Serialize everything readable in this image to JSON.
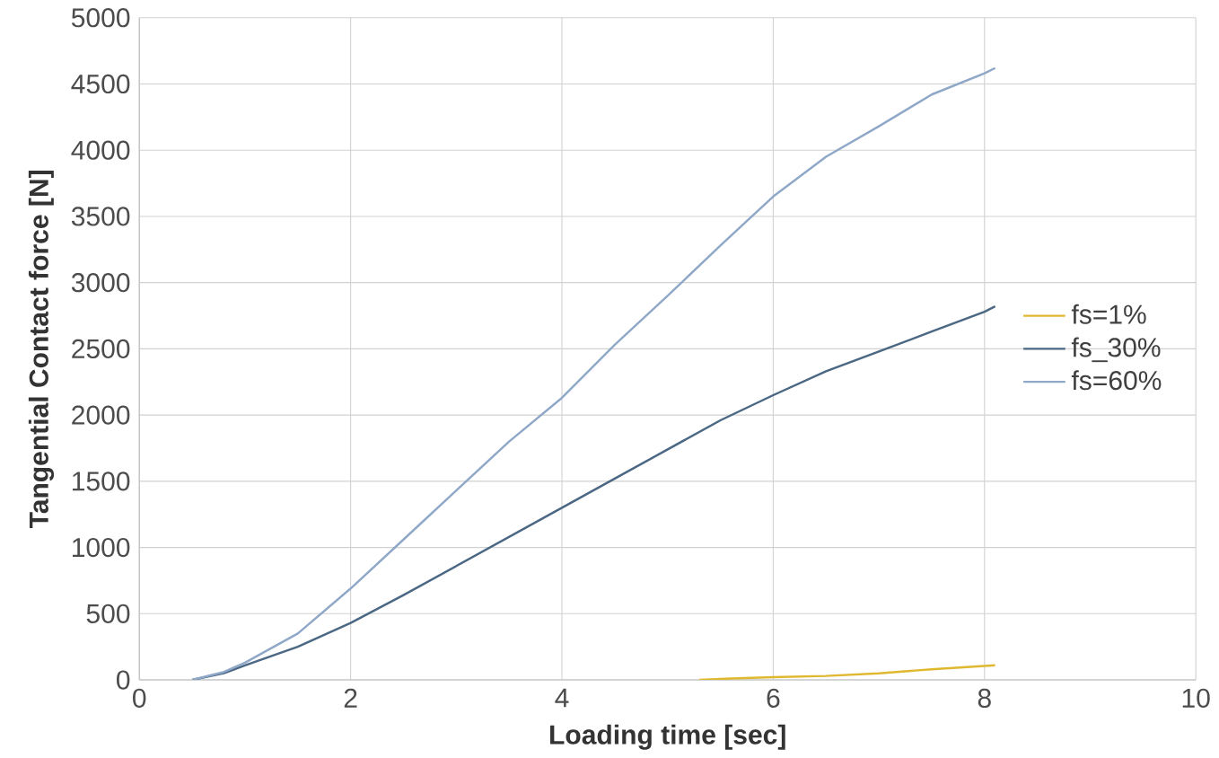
{
  "chart_data": {
    "type": "line",
    "xlabel": "Loading time [sec]",
    "ylabel": "Tangential Contact force [N]",
    "xlim": [
      0,
      10
    ],
    "ylim": [
      0,
      5000
    ],
    "xticks": [
      0,
      2,
      4,
      6,
      8,
      10
    ],
    "yticks": [
      0,
      500,
      1000,
      1500,
      2000,
      2500,
      3000,
      3500,
      4000,
      4500,
      5000
    ],
    "grid": true,
    "legend": "right",
    "marker": "none",
    "line_style": "solid",
    "series": [
      {
        "name": "fs=1%",
        "color": "#e0b830",
        "x": [
          5.3,
          5.6,
          6.0,
          6.5,
          7.0,
          7.5,
          7.9,
          8.1
        ],
        "values": [
          0,
          10,
          20,
          30,
          50,
          80,
          100,
          110
        ]
      },
      {
        "name": "fs_30%",
        "color": "#4a6784",
        "x": [
          0.5,
          0.8,
          1.0,
          1.5,
          2.0,
          2.5,
          3.0,
          3.5,
          4.0,
          4.5,
          5.0,
          5.5,
          6.0,
          6.5,
          7.0,
          7.5,
          8.0,
          8.1
        ],
        "values": [
          0,
          50,
          110,
          250,
          430,
          640,
          860,
          1080,
          1300,
          1520,
          1740,
          1960,
          2150,
          2330,
          2480,
          2630,
          2780,
          2820
        ]
      },
      {
        "name": "fs=60%",
        "color": "#90a8c8",
        "x": [
          0.5,
          0.8,
          1.0,
          1.5,
          2.0,
          2.5,
          3.0,
          3.5,
          4.0,
          4.5,
          5.0,
          5.5,
          6.0,
          6.5,
          7.0,
          7.5,
          8.0,
          8.1
        ],
        "values": [
          0,
          60,
          130,
          350,
          690,
          1060,
          1430,
          1800,
          2130,
          2530,
          2900,
          3280,
          3650,
          3950,
          4180,
          4420,
          4580,
          4620
        ]
      }
    ]
  }
}
